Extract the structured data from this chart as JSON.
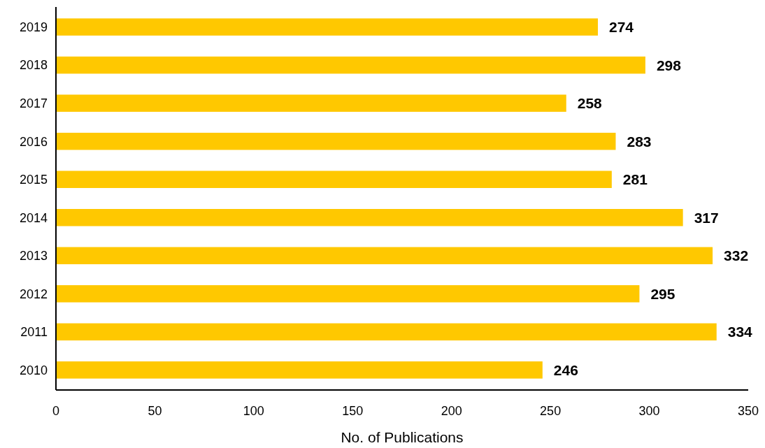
{
  "chart_data": {
    "type": "bar",
    "orientation": "horizontal",
    "xlabel": "No. of Publications",
    "categories": [
      "2019",
      "2018",
      "2017",
      "2016",
      "2015",
      "2014",
      "2013",
      "2012",
      "2011",
      "2010"
    ],
    "values": [
      274,
      298,
      258,
      283,
      281,
      317,
      332,
      295,
      334,
      246
    ],
    "color": "#ffc800",
    "xlim": [
      0,
      350
    ],
    "xticks": [
      0,
      50,
      100,
      150,
      200,
      250,
      300,
      350
    ],
    "data_labels": true,
    "grid": false
  }
}
